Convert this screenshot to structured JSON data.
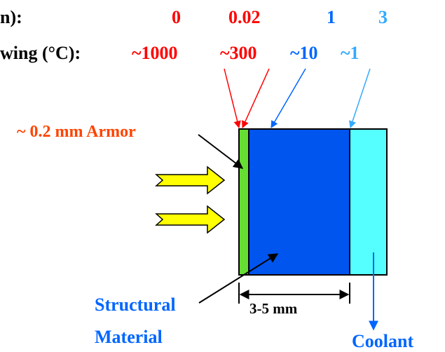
{
  "header": {
    "row1_label": "n):",
    "row2_label": "wing (°C):"
  },
  "depths": [
    {
      "label": "0",
      "color": "#ff0000"
    },
    {
      "label": "0.02",
      "color": "#ff0000"
    },
    {
      "label": "1",
      "color": "#0066ff"
    },
    {
      "label": "3",
      "color": "#33aaff"
    }
  ],
  "temperatures": [
    {
      "label": "~1000",
      "color": "#ff0000"
    },
    {
      "label": "~300",
      "color": "#ff0000"
    },
    {
      "label": "~10",
      "color": "#0066ff"
    },
    {
      "label": "~1",
      "color": "#33aaff"
    }
  ],
  "layers": {
    "armor_label": "~ 0.2 mm Armor",
    "structural_line1": "Structural",
    "structural_line2": "Material",
    "coolant_label": "Coolant",
    "thickness_label": "3-5 mm"
  },
  "colors": {
    "armor_fill": "#66dd33",
    "structural_fill": "#0055ee",
    "coolant_fill": "#55ffff",
    "arrow_fill": "#ffff00",
    "armor_text": "#ff4400",
    "blue_text": "#0066ff",
    "black": "#000000"
  }
}
